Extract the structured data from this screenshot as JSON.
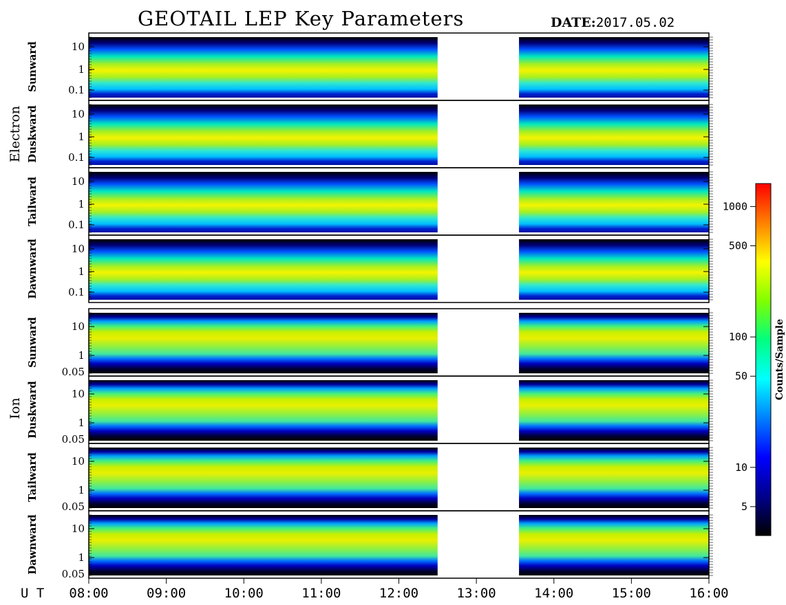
{
  "header": {
    "title": "GEOTAIL LEP Key Parameters",
    "date_label": "DATE:",
    "date_value": "2017.05.02"
  },
  "groups": [
    {
      "name": "Electron",
      "panels": [
        "Sunward",
        "Duskward",
        "Tailward",
        "Dawnward"
      ]
    },
    {
      "name": "Ion",
      "panels": [
        "Sunward",
        "Duskward",
        "Tailward",
        "Dawnward"
      ]
    }
  ],
  "x_axis": {
    "label": "U T",
    "ticks": [
      "08:00",
      "09:00",
      "10:00",
      "11:00",
      "12:00",
      "13:00",
      "14:00",
      "15:00",
      "16:00"
    ]
  },
  "colorbar": {
    "label": "Counts/Sample",
    "ticks": [
      "1000",
      "500",
      "100",
      "50",
      "10",
      "5"
    ],
    "scale": "log",
    "colors": [
      "#000000",
      "#00008b",
      "#0000ff",
      "#0080ff",
      "#00ffff",
      "#00ff80",
      "#80ff00",
      "#ffff00",
      "#ff8000",
      "#ff0000"
    ]
  },
  "chart_data": {
    "type": "heatmap",
    "x_range_hours": [
      8.0,
      16.0
    ],
    "data_gap_hours": [
      12.5,
      13.55
    ],
    "electron": {
      "y_ticks": [
        "10",
        "1",
        "0.1"
      ],
      "y_scale": "log",
      "y_range": [
        0.05,
        40
      ]
    },
    "ion": {
      "y_ticks": [
        "10",
        "1",
        "0.05"
      ],
      "y_scale": "log",
      "y_range": [
        0.05,
        40
      ]
    }
  }
}
